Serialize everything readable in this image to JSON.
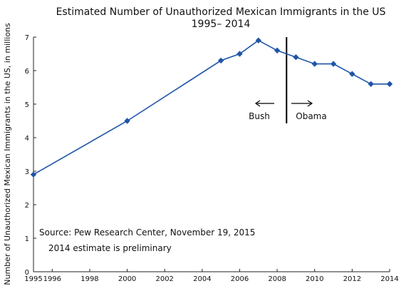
{
  "chart_data": {
    "type": "line",
    "title": "Estimated Number of Unauthorized Mexican Immigrants in the US",
    "subtitle": "1995– 2014",
    "ylabel": "Number of Unauthorized Mexican Immigrants in the US, in millions",
    "xlabel": "",
    "xlim": [
      1995,
      2014
    ],
    "ylim": [
      0,
      7
    ],
    "x_ticks": [
      "1995",
      "1996",
      "1998",
      "2000",
      "2002",
      "2004",
      "2006",
      "2008",
      "2010",
      "2012",
      "2014"
    ],
    "y_ticks": [
      "0",
      "1",
      "2",
      "3",
      "4",
      "5",
      "6",
      "7"
    ],
    "series": [
      {
        "x": [
          1995,
          2000,
          2005,
          2006,
          2007,
          2008,
          2009,
          2010,
          2011,
          2012,
          2013,
          2014
        ],
        "values": [
          2.9,
          4.5,
          6.3,
          6.5,
          6.9,
          6.6,
          6.4,
          6.2,
          6.2,
          5.9,
          5.6,
          5.6
        ],
        "color": "#1f55a8"
      }
    ],
    "divider_x": 2008.5,
    "annotations": {
      "left": "Bush",
      "right": "Obama",
      "source": "Source:  Pew Research Center, November 19, 2015",
      "note": "2014 estimate is preliminary"
    },
    "grid": false,
    "legend": "none"
  }
}
